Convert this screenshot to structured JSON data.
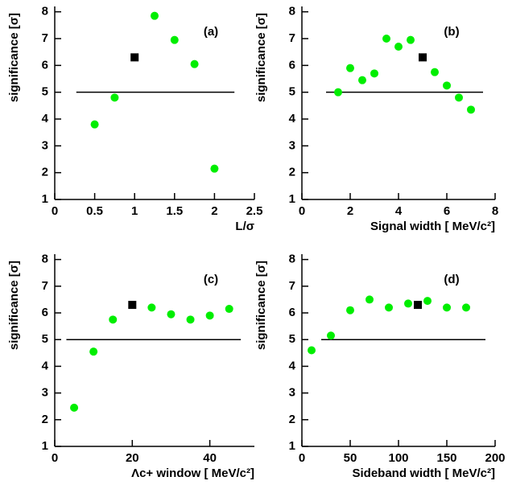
{
  "chart_data": [
    {
      "type": "scatter",
      "panel_label": "(a)",
      "xlabel": "L/σ",
      "ylabel": "significance [σ]",
      "xlim": [
        0,
        2.5
      ],
      "ylim": [
        1,
        8.2
      ],
      "xticks": [
        0,
        0.5,
        1,
        1.5,
        2,
        2.5
      ],
      "yticks": [
        1,
        2,
        3,
        4,
        5,
        6,
        7,
        8
      ],
      "points": {
        "color": "#00ee00",
        "x": [
          0.5,
          0.75,
          1.25,
          1.5,
          1.75,
          2.0
        ],
        "y": [
          3.8,
          4.8,
          7.85,
          6.95,
          6.05,
          2.15
        ]
      },
      "reference": {
        "color": "#000000",
        "x": 1.0,
        "y": 6.3
      },
      "threshold": {
        "value": 5,
        "x": [
          0.27,
          2.25
        ]
      }
    },
    {
      "type": "scatter",
      "panel_label": "(b)",
      "xlabel": "Signal width [ MeV/c²]",
      "ylabel": "significance [σ]",
      "xlim": [
        0,
        8
      ],
      "ylim": [
        1,
        8.2
      ],
      "xticks": [
        0,
        2,
        4,
        6,
        8
      ],
      "yticks": [
        1,
        2,
        3,
        4,
        5,
        6,
        7,
        8
      ],
      "points": {
        "color": "#00ee00",
        "x": [
          1.5,
          2,
          2.5,
          3,
          3.5,
          4,
          4.5,
          5.5,
          6,
          6.5,
          7
        ],
        "y": [
          5.0,
          5.9,
          5.45,
          5.7,
          7.0,
          6.7,
          6.95,
          5.75,
          5.25,
          4.8,
          4.35
        ]
      },
      "reference": {
        "color": "#000000",
        "x": 5,
        "y": 6.3
      },
      "threshold": {
        "value": 5,
        "x": [
          1,
          7.5
        ]
      }
    },
    {
      "type": "scatter",
      "panel_label": "(c)",
      "xlabel": "Λc+ window  [ MeV/c²]",
      "ylabel": "significance [σ]",
      "xlim": [
        0,
        51.5
      ],
      "ylim": [
        1,
        8.2
      ],
      "xticks": [
        0,
        20,
        40
      ],
      "yticks": [
        1,
        2,
        3,
        4,
        5,
        6,
        7,
        8
      ],
      "points": {
        "color": "#00ee00",
        "x": [
          5,
          10,
          15,
          25,
          30,
          35,
          40,
          45
        ],
        "y": [
          2.45,
          4.55,
          5.75,
          6.2,
          5.95,
          5.75,
          5.9,
          6.15
        ]
      },
      "reference": {
        "color": "#000000",
        "x": 20,
        "y": 6.3
      },
      "threshold": {
        "value": 5,
        "x": [
          3,
          48
        ]
      }
    },
    {
      "type": "scatter",
      "panel_label": "(d)",
      "xlabel": "Sideband width [ MeV/c²]",
      "ylabel": "significance [σ]",
      "xlim": [
        0,
        200
      ],
      "ylim": [
        1,
        8.2
      ],
      "xticks": [
        0,
        50,
        100,
        150,
        200
      ],
      "yticks": [
        1,
        2,
        3,
        4,
        5,
        6,
        7,
        8
      ],
      "points": {
        "color": "#00ee00",
        "x": [
          10,
          30,
          50,
          70,
          90,
          110,
          130,
          150,
          170
        ],
        "y": [
          4.6,
          5.15,
          6.1,
          6.5,
          6.2,
          6.35,
          6.45,
          6.2,
          6.2
        ]
      },
      "reference": {
        "color": "#000000",
        "x": 120,
        "y": 6.3
      },
      "threshold": {
        "value": 5,
        "x": [
          20,
          190
        ]
      }
    }
  ]
}
